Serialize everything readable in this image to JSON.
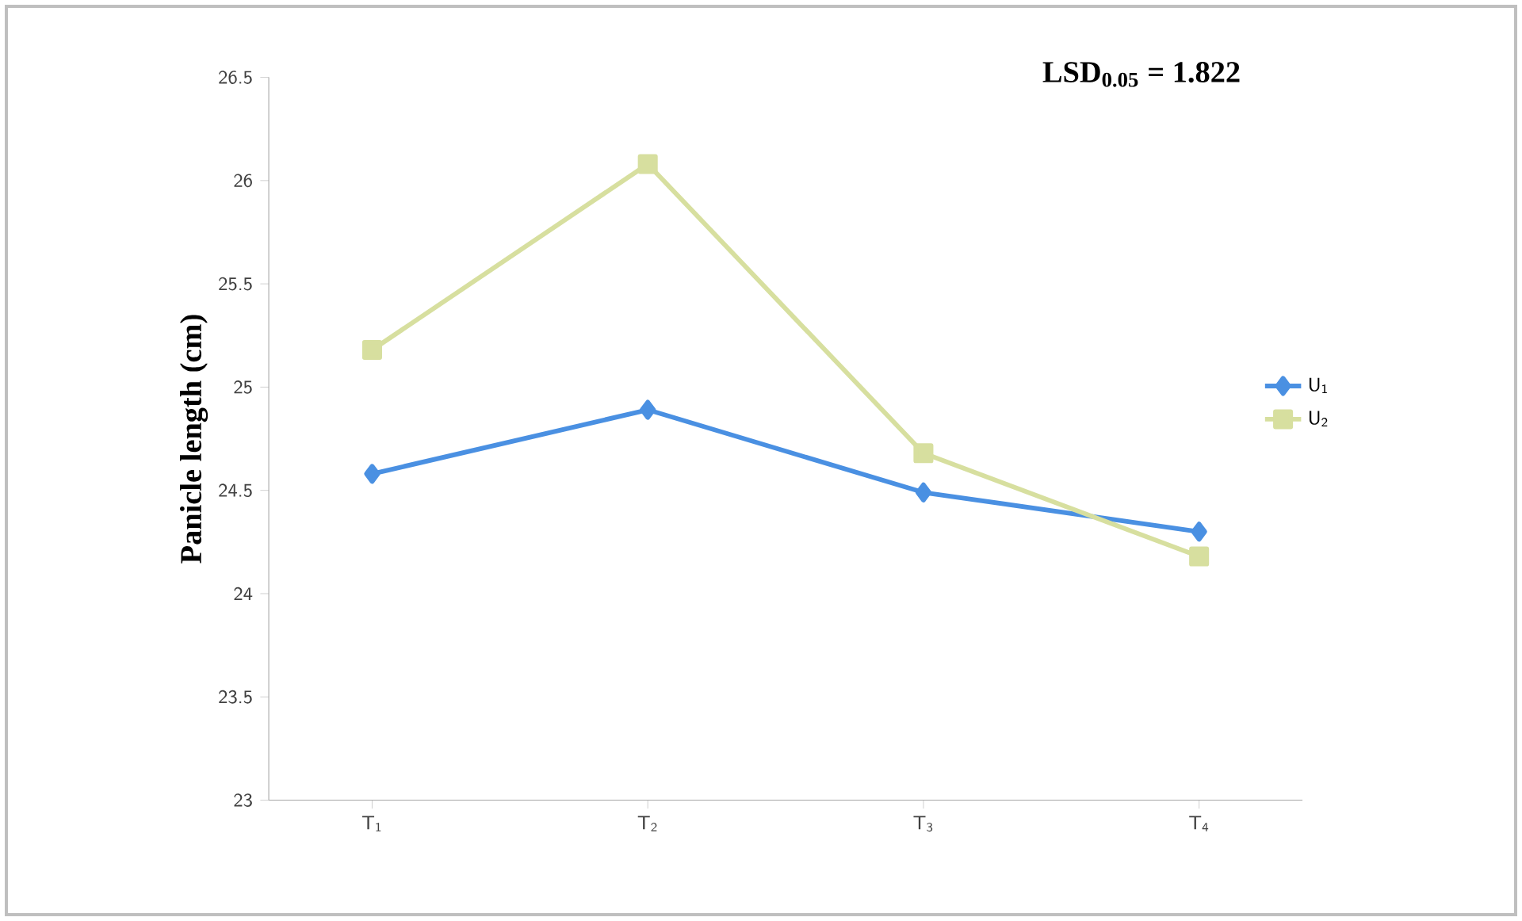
{
  "chart_data": {
    "type": "line",
    "categories": [
      "T$_{1}$",
      "T$_{2}$",
      "T$_{3}$",
      "T$_{4}$"
    ],
    "ylabel": "Panicle length (cm)",
    "annotations": [
      "LSD$_{0.05}$ = 1.822"
    ],
    "ylim": [
      23,
      26.5
    ],
    "yticks": [
      23,
      23.5,
      24,
      24.5,
      25,
      25.5,
      26,
      26.5
    ],
    "legend": "right",
    "grid": false,
    "series": [
      {
        "name": "U$_{1}$",
        "color": "#4a90e2",
        "marker": "diamond",
        "values": [
          24.58,
          24.89,
          24.49,
          24.3
        ]
      },
      {
        "name": "U$_{2}$",
        "color": "#d7df9f",
        "marker": "square",
        "values": [
          25.18,
          26.08,
          24.68,
          24.18
        ]
      }
    ]
  }
}
